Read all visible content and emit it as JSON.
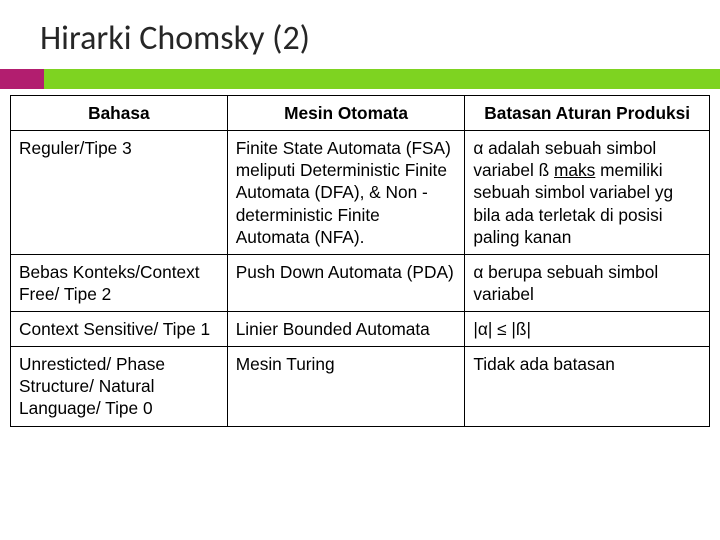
{
  "slide": {
    "title": "Hirarki Chomsky (2)",
    "accent_left_color": "#b21e6f",
    "accent_right_color": "#7ed321",
    "title_color": "#262626",
    "title_fontsize": 34
  },
  "table": {
    "columns": [
      "Bahasa",
      "Mesin Otomata",
      "Batasan Aturan Produksi"
    ],
    "column_widths": [
      "31%",
      "34%",
      "35%"
    ],
    "header_align": "center",
    "cell_fontsize": 17.3,
    "border_color": "#000000",
    "rows": [
      {
        "bahasa": "Reguler/Tipe 3",
        "mesin": "Finite State Automata (FSA) meliputi Deterministic Finite Automata (DFA), & Non -deterministic Finite Automata (NFA).",
        "batasan_pre": "α adalah sebuah simbol variabel\nß ",
        "batasan_u": "maks",
        "batasan_post": " memiliki sebuah simbol variabel yg bila ada terletak di posisi paling kanan"
      },
      {
        "bahasa": "Bebas Konteks/Context Free/ Tipe 2",
        "mesin": "Push Down Automata (PDA)",
        "batasan_pre": "α berupa sebuah simbol variabel",
        "batasan_u": "",
        "batasan_post": ""
      },
      {
        "bahasa": "Context Sensitive/ Tipe 1",
        "mesin": "Linier Bounded Automata",
        "batasan_pre": "|α| ≤ |ß|",
        "batasan_u": "",
        "batasan_post": ""
      },
      {
        "bahasa": "Unresticted/ Phase Structure/ Natural Language/ Tipe 0",
        "mesin": "Mesin Turing",
        "batasan_pre": "Tidak ada batasan",
        "batasan_u": "",
        "batasan_post": ""
      }
    ]
  }
}
